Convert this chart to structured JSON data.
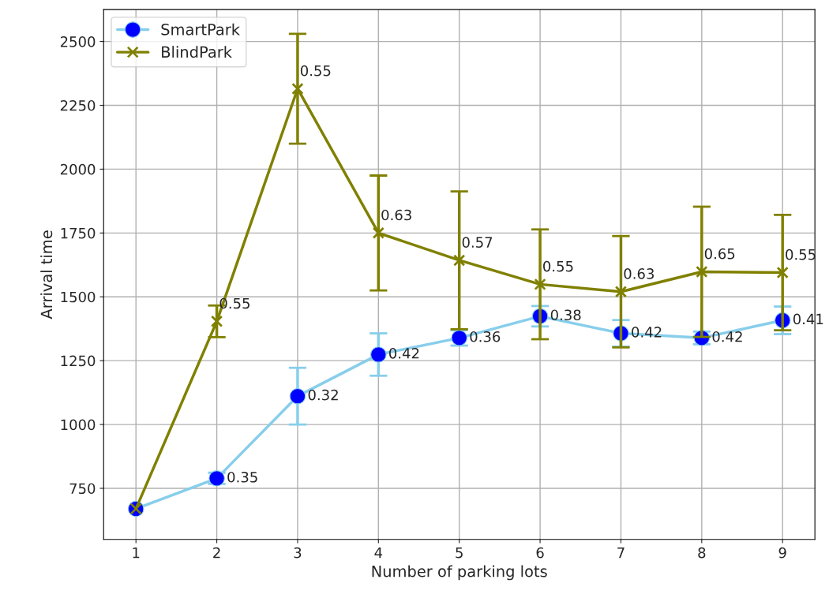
{
  "chart_data": {
    "type": "line",
    "xlabel": "Number of parking lots",
    "ylabel": "Arrival time",
    "x": [
      1,
      2,
      3,
      4,
      5,
      6,
      7,
      8,
      9
    ],
    "series": [
      {
        "name": "SmartPark",
        "color": "#87ceeb",
        "marker": "circle",
        "values": [
          670,
          789,
          1111,
          1274,
          1339,
          1424,
          1357,
          1339,
          1408
        ],
        "errors": [
          null,
          22,
          111,
          83,
          30,
          40,
          52,
          25,
          54
        ]
      },
      {
        "name": "BlindPark",
        "color": "#808000",
        "marker": "cross",
        "values": [
          670,
          1404,
          2315,
          1750,
          1643,
          1549,
          1520,
          1598,
          1595
        ],
        "errors": [
          null,
          62,
          215,
          225,
          270,
          215,
          218,
          255,
          226
        ]
      }
    ],
    "annotations": [
      {
        "text": "0.35",
        "x": 2,
        "y": 789
      },
      {
        "text": "0.32",
        "x": 3,
        "y": 1111
      },
      {
        "text": "0.42",
        "x": 4,
        "y": 1274
      },
      {
        "text": "0.36",
        "x": 5,
        "y": 1339
      },
      {
        "text": "0.38",
        "x": 6,
        "y": 1424
      },
      {
        "text": "0.42",
        "x": 7,
        "y": 1357
      },
      {
        "text": "0.42",
        "x": 8,
        "y": 1339
      },
      {
        "text": "0.41",
        "x": 9,
        "y": 1408
      },
      {
        "text": "0.55",
        "x": 2,
        "y": 1404
      },
      {
        "text": "0.55",
        "x": 3,
        "y": 2315
      },
      {
        "text": "0.63",
        "x": 4,
        "y": 1750
      },
      {
        "text": "0.57",
        "x": 5,
        "y": 1643
      },
      {
        "text": "0.55",
        "x": 6,
        "y": 1549
      },
      {
        "text": "0.63",
        "x": 7,
        "y": 1520
      },
      {
        "text": "0.65",
        "x": 8,
        "y": 1598
      },
      {
        "text": "0.55",
        "x": 9,
        "y": 1595
      }
    ],
    "xlim": [
      0.6,
      9.4
    ],
    "xticks": [
      1,
      2,
      3,
      4,
      5,
      6,
      7,
      8,
      9
    ],
    "ylim": [
      550,
      2625
    ],
    "yticks": [
      750,
      1000,
      1250,
      1500,
      1750,
      2000,
      2250,
      2500
    ],
    "grid": true,
    "legend": "top left"
  }
}
